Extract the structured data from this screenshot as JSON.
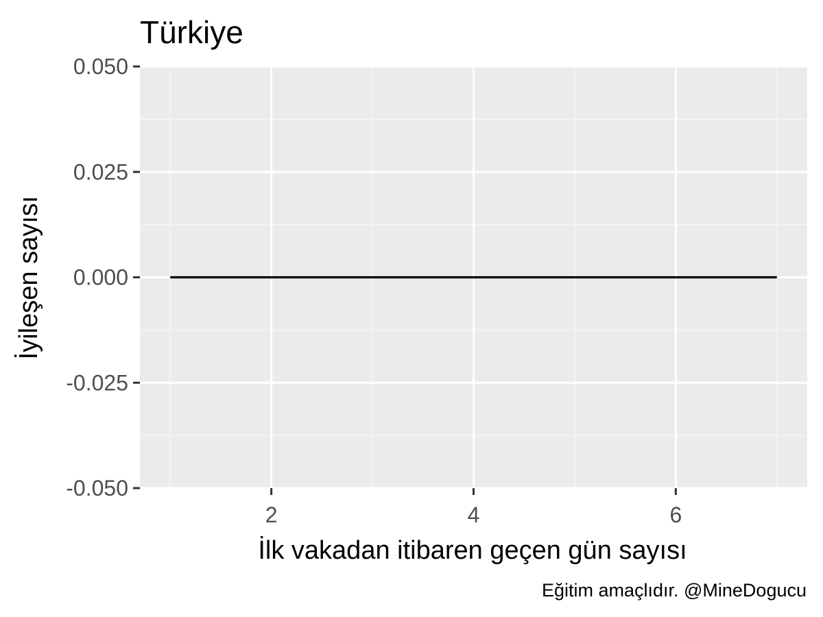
{
  "chart_data": {
    "type": "line",
    "title": "Türkiye",
    "xlabel": "İlk vakadan itibaren geçen gün sayısı",
    "ylabel": "İyileşen sayısı",
    "caption": "Eğitim amaçlıdır. @MineDogucu",
    "x": [
      1,
      2,
      3,
      4,
      5,
      6,
      7
    ],
    "series": [
      {
        "values": [
          0,
          0,
          0,
          0,
          0,
          0,
          0
        ]
      }
    ],
    "xlim": [
      0.7,
      7.3
    ],
    "ylim": [
      -0.05,
      0.05
    ],
    "x_ticks": [
      2,
      4,
      6
    ],
    "x_tick_labels": [
      "2",
      "4",
      "6"
    ],
    "x_minor_ticks": [
      1,
      3,
      5,
      7
    ],
    "y_ticks": [
      -0.05,
      -0.025,
      0,
      0.025,
      0.05
    ],
    "y_tick_labels": [
      "-0.050",
      "-0.025",
      "0.000",
      "0.025",
      "0.050"
    ],
    "y_minor_ticks": [
      -0.0375,
      -0.0125,
      0.0125,
      0.0375
    ],
    "grid": true,
    "colors": {
      "panel_background": "#ebebeb",
      "grid_major": "#ffffff",
      "grid_minor": "#f5f5f5",
      "line": "#000000",
      "tick_mark": "#333333",
      "tick_label": "#4d4d4d"
    }
  }
}
